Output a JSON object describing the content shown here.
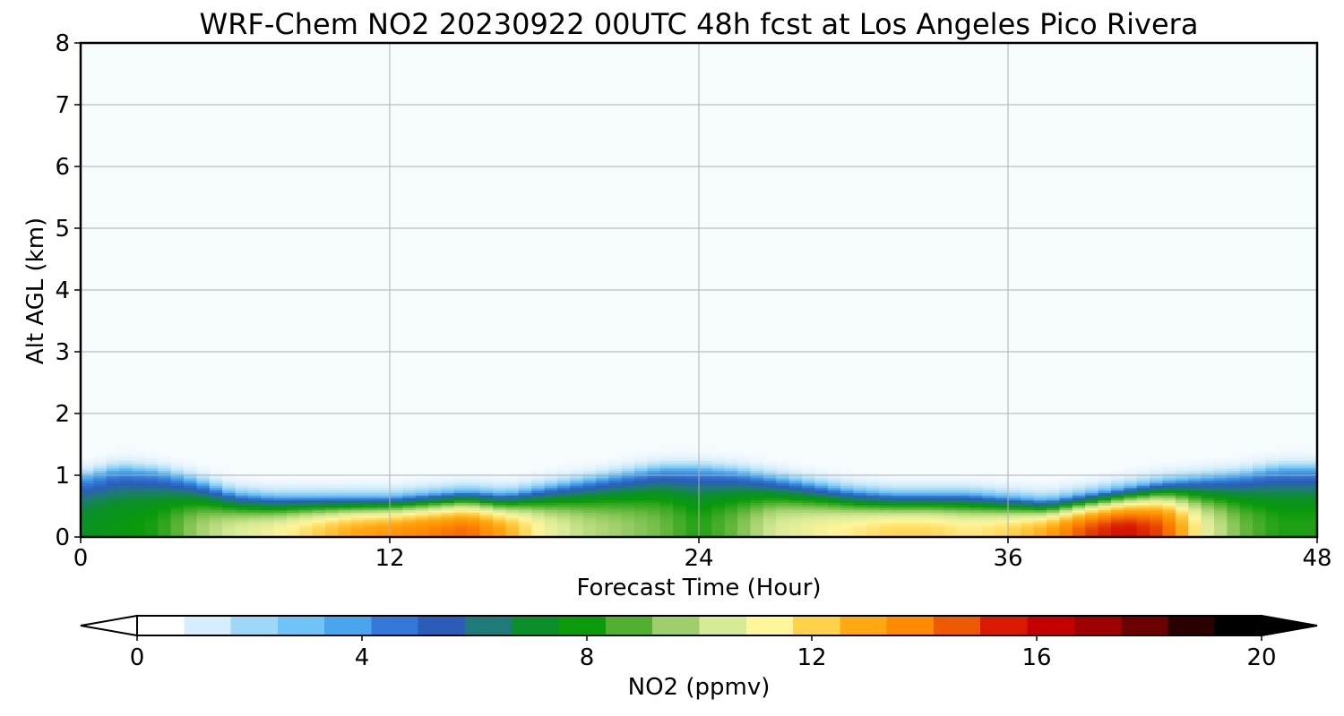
{
  "chart_data": {
    "type": "heatmap",
    "title": "WRF-Chem NO2  20230922 00UTC 48h fcst at Los Angeles Pico Rivera",
    "xlabel": "Forecast Time (Hour)",
    "ylabel": "Alt AGL (km)",
    "xlim": [
      0,
      48
    ],
    "ylim": [
      0,
      8
    ],
    "xticks": [
      "0",
      "12",
      "24",
      "36",
      "48"
    ],
    "yticks": [
      "0",
      "1",
      "2",
      "3",
      "4",
      "5",
      "6",
      "7",
      "8"
    ],
    "grid": true,
    "colorbar": {
      "label": "NO2  (ppmv)",
      "range": [
        0,
        20
      ],
      "ticks": [
        "0",
        "4",
        "8",
        "12",
        "16",
        "20"
      ],
      "extend": "both",
      "orientation": "horizontal",
      "colors": [
        "#ffffff",
        "#d6eefb",
        "#9fd8f7",
        "#6fc3f5",
        "#4aa6ec",
        "#3378d8",
        "#2b5db8",
        "#1f7a7a",
        "#0b8f2a",
        "#0a9a0a",
        "#52b030",
        "#9fcf6a",
        "#d7ea96",
        "#fff59a",
        "#ffd24a",
        "#ffa812",
        "#ff8a00",
        "#ee5a00",
        "#d81a00",
        "#c40000",
        "#9e0000",
        "#6a0000",
        "#2a0000",
        "#000000"
      ]
    },
    "profiles": {
      "hours": [
        0,
        1.5,
        3,
        4.5,
        6,
        7.5,
        9,
        10.5,
        12,
        13.5,
        15,
        16.5,
        18,
        19.5,
        21,
        22.5,
        24,
        25.5,
        27,
        28.5,
        30,
        31.5,
        33,
        34.5,
        36,
        37.5,
        39,
        40.5,
        42,
        43.5,
        45,
        46.5,
        48
      ],
      "pbl_top_km": [
        0.95,
        1.1,
        1.05,
        0.9,
        0.7,
        0.65,
        0.65,
        0.65,
        0.65,
        0.7,
        0.75,
        0.7,
        0.8,
        0.9,
        1.0,
        1.1,
        1.1,
        1.05,
        0.95,
        0.85,
        0.75,
        0.7,
        0.7,
        0.7,
        0.65,
        0.6,
        0.7,
        0.8,
        0.9,
        0.95,
        1.0,
        1.1,
        1.1
      ],
      "surface_no2_ppmv": [
        7,
        7.5,
        8,
        9.5,
        10.5,
        11,
        12,
        13,
        13.5,
        14,
        14.5,
        13,
        11,
        10,
        9.5,
        9,
        8,
        9,
        10.5,
        11,
        11.5,
        12,
        12,
        11.5,
        12,
        13,
        15,
        16,
        15,
        11,
        9,
        8,
        8
      ]
    }
  }
}
